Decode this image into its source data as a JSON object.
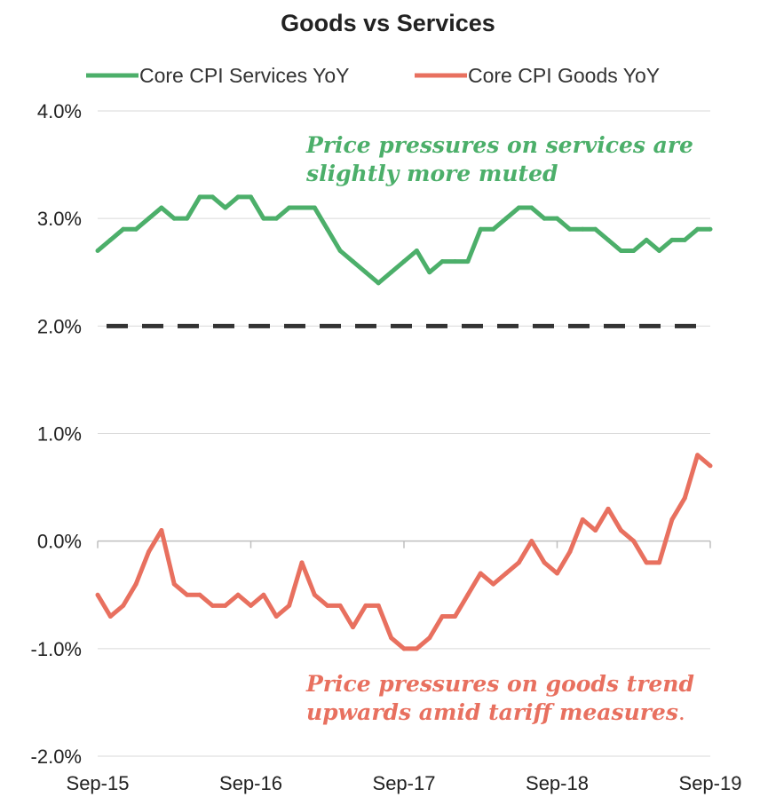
{
  "chart_data": {
    "type": "line",
    "title": "Goods vs Services",
    "xlabel": "",
    "ylabel": "",
    "x_tick_labels": [
      "Sep-15",
      "Sep-16",
      "Sep-17",
      "Sep-18",
      "Sep-19"
    ],
    "y_tick_labels": [
      "4.0%",
      "3.0%",
      "2.0%",
      "1.0%",
      "0.0%",
      "-1.0%",
      "-2.0%"
    ],
    "y_ticks": [
      4.0,
      3.0,
      2.0,
      1.0,
      0.0,
      -1.0,
      -2.0
    ],
    "ylim": [
      -2.0,
      4.0
    ],
    "x_range": [
      "Sep-15",
      "Sep-19"
    ],
    "grid": true,
    "legend_position": "top",
    "reference_line": {
      "value": 2.0,
      "style": "dashed",
      "color": "#333333"
    },
    "series": [
      {
        "name": "Core CPI Services YoY",
        "color": "#4caf6a",
        "values": [
          2.7,
          2.8,
          2.9,
          2.9,
          3.0,
          3.1,
          3.0,
          3.0,
          3.2,
          3.2,
          3.1,
          3.2,
          3.2,
          3.0,
          3.0,
          3.1,
          3.1,
          3.1,
          2.9,
          2.7,
          2.6,
          2.5,
          2.4,
          2.5,
          2.6,
          2.7,
          2.5,
          2.6,
          2.6,
          2.6,
          2.9,
          2.9,
          3.0,
          3.1,
          3.1,
          3.0,
          3.0,
          2.9,
          2.9,
          2.9,
          2.8,
          2.7,
          2.7,
          2.8,
          2.7,
          2.8,
          2.8,
          2.9,
          2.9
        ]
      },
      {
        "name": "Core CPI Goods YoY",
        "color": "#e8705f",
        "values": [
          -0.5,
          -0.7,
          -0.6,
          -0.4,
          -0.1,
          0.1,
          -0.4,
          -0.5,
          -0.5,
          -0.6,
          -0.6,
          -0.5,
          -0.6,
          -0.5,
          -0.7,
          -0.6,
          -0.2,
          -0.5,
          -0.6,
          -0.6,
          -0.8,
          -0.6,
          -0.6,
          -0.9,
          -1.0,
          -1.0,
          -0.9,
          -0.7,
          -0.7,
          -0.5,
          -0.3,
          -0.4,
          -0.3,
          -0.2,
          0.0,
          -0.2,
          -0.3,
          -0.1,
          0.2,
          0.1,
          0.3,
          0.1,
          0.0,
          -0.2,
          -0.2,
          0.2,
          0.4,
          0.8,
          0.7
        ]
      }
    ],
    "annotations": [
      {
        "lines": [
          "Price pressures on services are",
          "slightly more muted"
        ],
        "color": "#4caf6a"
      },
      {
        "lines": [
          "Price pressures on goods trend",
          "upwards amid tariff measures"
        ],
        "trailing": ".",
        "color": "#e8705f"
      }
    ]
  }
}
